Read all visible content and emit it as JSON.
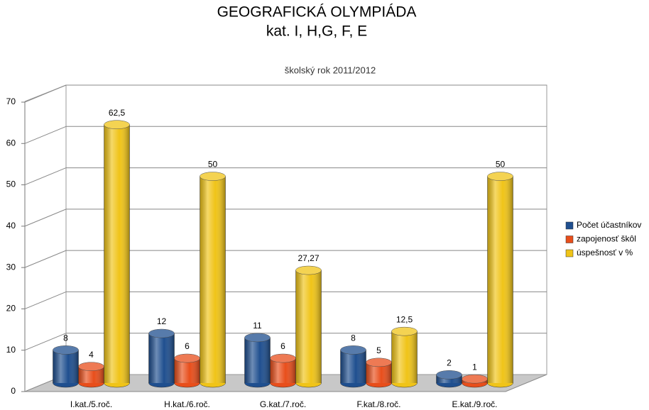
{
  "chart_data": {
    "type": "bar3d",
    "title": "GEOGRAFICKÁ  OLYMPIÁDA",
    "title_line2": "kat. I, H,G, F, E",
    "subtitle": "školský rok 2011/2012",
    "categories": [
      "I.kat./5.roč.",
      "H.kat./6.roč.",
      "G.kat./7.roč.",
      "F.kat./8.roč.",
      "E.kat./9.roč."
    ],
    "series": [
      {
        "name": "Počet účastníkov",
        "color": "#1f4f8f",
        "values": [
          8,
          12,
          11,
          8,
          2
        ],
        "value_labels": [
          "8",
          "12",
          "11",
          "8",
          "2"
        ]
      },
      {
        "name": "zapojenosť škôl",
        "color": "#e84e1b",
        "values": [
          4,
          6,
          6,
          5,
          1
        ],
        "value_labels": [
          "4",
          "6",
          "6",
          "5",
          "1"
        ]
      },
      {
        "name": "úspešnosť v %",
        "color": "#f0c418",
        "values": [
          62.5,
          50,
          27.27,
          12.5,
          50
        ],
        "value_labels": [
          "62,5",
          "50",
          "27,27",
          "12,5",
          "50"
        ]
      }
    ],
    "ylim": [
      0,
      70
    ],
    "yticks": [
      0,
      10,
      20,
      30,
      40,
      50,
      60,
      70
    ],
    "grid": true,
    "legend": "right"
  }
}
